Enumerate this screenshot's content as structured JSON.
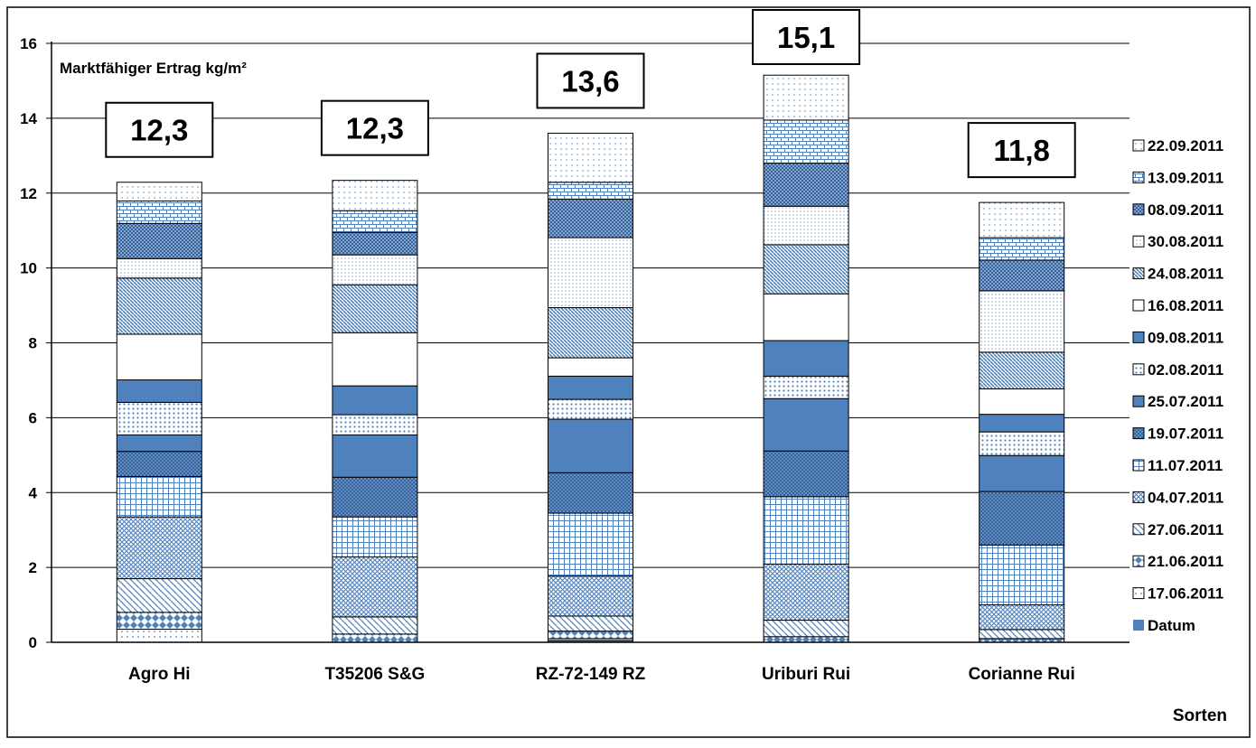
{
  "chart_data": {
    "type": "bar",
    "stacked": true,
    "title": "Marktfähiger Ertrag kg/m²",
    "xlabel": "Sorten",
    "ylabel": "",
    "ylim": [
      0,
      16
    ],
    "yticks": [
      "0",
      "2",
      "4",
      "6",
      "8",
      "10",
      "12",
      "14",
      "16"
    ],
    "grid": true,
    "legend_position": "right",
    "categories": [
      "Agro Hi",
      "T35206 S&G",
      "RZ-72-149 RZ",
      "Uriburi Rui",
      "Corianne Rui"
    ],
    "totals": [
      "12,3",
      "12,3",
      "13,6",
      "15,1",
      "11,8"
    ],
    "series": [
      {
        "name": "Datum",
        "values": [
          0.0,
          0.0,
          0.05,
          0.0,
          0.0
        ]
      },
      {
        "name": "17.06.2011",
        "values": [
          0.35,
          0.0,
          0.05,
          0.0,
          0.0
        ]
      },
      {
        "name": "21.06.2011",
        "values": [
          0.45,
          0.22,
          0.2,
          0.15,
          0.1
        ]
      },
      {
        "name": "27.06.2011",
        "values": [
          0.9,
          0.46,
          0.4,
          0.44,
          0.24
        ]
      },
      {
        "name": "04.07.2011",
        "values": [
          1.65,
          1.6,
          1.07,
          1.5,
          0.66
        ]
      },
      {
        "name": "11.07.2011",
        "values": [
          1.08,
          1.07,
          1.68,
          1.8,
          1.6
        ]
      },
      {
        "name": "19.07.2011",
        "values": [
          0.67,
          1.06,
          1.08,
          1.22,
          1.43
        ]
      },
      {
        "name": "25.07.2011",
        "values": [
          0.44,
          1.13,
          1.43,
          1.4,
          0.96
        ]
      },
      {
        "name": "02.08.2011",
        "values": [
          0.87,
          0.54,
          0.53,
          0.6,
          0.63
        ]
      },
      {
        "name": "09.08.2011",
        "values": [
          0.6,
          0.77,
          0.62,
          0.95,
          0.47
        ]
      },
      {
        "name": "16.08.2011",
        "values": [
          1.22,
          1.42,
          0.49,
          1.25,
          0.68
        ]
      },
      {
        "name": "24.08.2011",
        "values": [
          1.5,
          1.28,
          1.34,
          1.31,
          0.98
        ]
      },
      {
        "name": "30.08.2011",
        "values": [
          0.52,
          0.8,
          1.87,
          1.03,
          1.64
        ]
      },
      {
        "name": "08.09.2011",
        "values": [
          0.94,
          0.6,
          1.03,
          1.15,
          0.82
        ]
      },
      {
        "name": "13.09.2011",
        "values": [
          0.6,
          0.58,
          0.45,
          1.15,
          0.6
        ]
      },
      {
        "name": "22.09.2011",
        "values": [
          0.5,
          0.81,
          1.31,
          1.2,
          0.94
        ]
      }
    ],
    "colors": {
      "fill": "#4f81bd",
      "dark": "#3f6fa8",
      "light": "#dbe5f1",
      "line": "#000000",
      "grid": "#000000"
    }
  }
}
